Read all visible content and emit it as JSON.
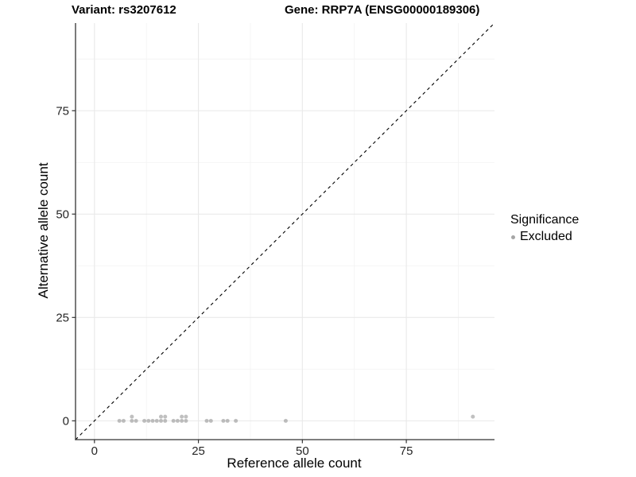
{
  "figure": {
    "title_variant": "Variant: rs3207612",
    "title_gene": "Gene: RRP7A (ENSG00000189306)"
  },
  "chart_data": {
    "type": "scatter",
    "titles": [
      "Variant: rs3207612",
      "Gene: RRP7A (ENSG00000189306)"
    ],
    "xlabel": "Reference allele count",
    "ylabel": "Alternative allele count",
    "xlim": [
      -4.55,
      96.2
    ],
    "ylim": [
      -4.55,
      96.2
    ],
    "x_major_ticks": [
      0,
      25,
      50,
      75
    ],
    "y_major_ticks": [
      0,
      25,
      50,
      75
    ],
    "minor_gridlines": [
      12.5,
      37.5,
      62.5,
      87.5
    ],
    "grid": true,
    "legend_position": "right",
    "identity_line": {
      "style": "dashed",
      "equation": "y = x",
      "color": "#000000"
    },
    "series": [
      {
        "name": "Excluded",
        "point_color": "rgba(115,115,115,0.45)",
        "points": [
          [
            6,
            0
          ],
          [
            7,
            0
          ],
          [
            9,
            0
          ],
          [
            9,
            1
          ],
          [
            10,
            0
          ],
          [
            12,
            0
          ],
          [
            13,
            0
          ],
          [
            14,
            0
          ],
          [
            15,
            0
          ],
          [
            16,
            0
          ],
          [
            16,
            1
          ],
          [
            17,
            0
          ],
          [
            17,
            1
          ],
          [
            19,
            0
          ],
          [
            20,
            0
          ],
          [
            21,
            0
          ],
          [
            21,
            1
          ],
          [
            22,
            0
          ],
          [
            22,
            1
          ],
          [
            27,
            0
          ],
          [
            28,
            0
          ],
          [
            31,
            0
          ],
          [
            32,
            0
          ],
          [
            34,
            0
          ],
          [
            46,
            0
          ],
          [
            91,
            1
          ]
        ]
      }
    ],
    "legend": {
      "title": "Significance",
      "entries": [
        {
          "label": "Excluded",
          "color": "#a6a6a6"
        }
      ]
    }
  },
  "colors": {
    "background": "#ffffff",
    "grid_major": "#e9e9e9",
    "grid_minor": "#f4f4f4",
    "axis_line": "#333333",
    "tick_label": "#262626",
    "identity_line": "#000000"
  }
}
